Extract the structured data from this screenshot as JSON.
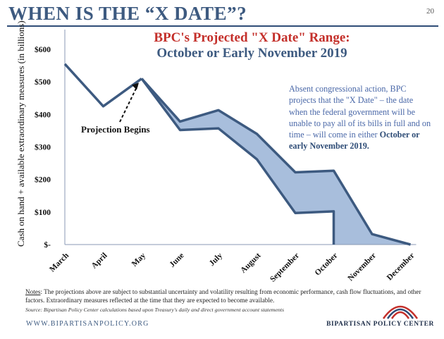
{
  "slide": {
    "title": "WHEN IS THE “X DATE”?",
    "page_number": "20",
    "chart_title_line1": "BPC's Projected \"X Date\" Range:",
    "chart_title_line2": "October or Early November 2019",
    "callout_text": "Absent congressional action, BPC projects that the \"X Date\" – the date when the federal government will be unable to pay all of its bills in full and on time – will come in either",
    "callout_bold": "October or early November 2019.",
    "projection_label": "Projection Begins",
    "notes_label": "Notes",
    "notes_text": ": The projections above are subject to substantial uncertainty and volatility resulting from economic performance, cash flow fluctuations, and other factors. Extraordinary measures reflected at the time that they are expected to become available.",
    "source_text": "Source: Bipartisan Policy Center calculations based upon Treasury's daily and direct government account statements",
    "footer_url": "WWW.BIPARTISANPOLICY.ORG",
    "logo_text": "BIPARTISAN POLICY CENTER",
    "colors": {
      "title": "#3d5a80",
      "accent_red": "#c4302b",
      "band_fill": "#a8bedc",
      "line": "#3d5a80"
    }
  },
  "chart_data": {
    "type": "area",
    "title": "BPC's Projected \"X Date\" Range: October or Early November 2019",
    "ylabel": "Cash on hand + available extraordinary measures (in billions)",
    "xlabel": "",
    "categories": [
      "March",
      "April",
      "May",
      "June",
      "July",
      "August",
      "September",
      "October",
      "November",
      "December"
    ],
    "y_tick_labels": [
      "$-",
      "$100",
      "$200",
      "$300",
      "$400",
      "$500",
      "$600"
    ],
    "y_ticks": [
      0,
      100,
      200,
      300,
      400,
      500,
      600
    ],
    "ylim": [
      0,
      600
    ],
    "series": [
      {
        "role": "actual",
        "x": [
          "March",
          "April",
          "May"
        ],
        "values": [
          555,
          425,
          510
        ]
      },
      {
        "role": "upper",
        "x": [
          "May",
          "June",
          "July",
          "August",
          "September",
          "October",
          "November",
          "December"
        ],
        "values": [
          510,
          378,
          413,
          340,
          222,
          227,
          32,
          0
        ]
      },
      {
        "role": "lower",
        "x": [
          "May",
          "June",
          "July",
          "August",
          "September",
          "October",
          "October"
        ],
        "values": [
          510,
          352,
          357,
          262,
          97,
          102,
          0
        ]
      }
    ],
    "annotations": [
      "Projection Begins"
    ],
    "grid": false,
    "legend": "none"
  }
}
